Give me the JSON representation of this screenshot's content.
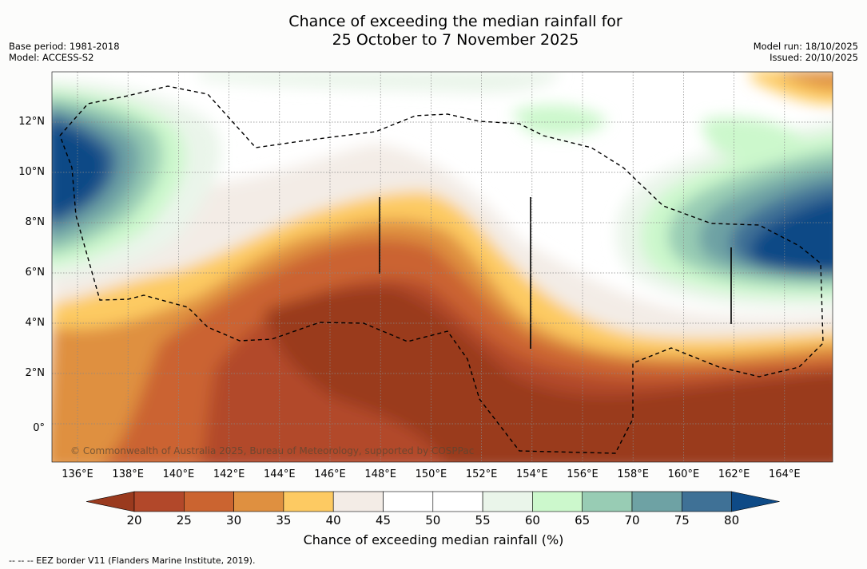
{
  "title": {
    "line1": "Chance of exceeding the median rainfall for",
    "line2": "25 October to 7 November 2025"
  },
  "meta_left": {
    "base_period": "Base period: 1981-2018",
    "model": "Model: ACCESS-S2"
  },
  "meta_right": {
    "model_run": "Model run: 18/10/2025",
    "issued": "Issued: 20/10/2025"
  },
  "map": {
    "x_ticks": [
      "136°E",
      "138°E",
      "140°E",
      "142°E",
      "144°E",
      "146°E",
      "148°E",
      "150°E",
      "152°E",
      "154°E",
      "156°E",
      "158°E",
      "160°E",
      "162°E",
      "164°E"
    ],
    "y_ticks": [
      "12°N",
      "10°N",
      "8°N",
      "6°N",
      "4°N",
      "2°N",
      "0°"
    ],
    "copyright": "© Commonwealth of Australia 2025, Bureau of Meteorology, supported by COSPPac"
  },
  "legend": {
    "colors": [
      "#9a3a1e",
      "#b2482a",
      "#cb6430",
      "#df9040",
      "#fdca62",
      "#f3ece6",
      "#ffffff",
      "#ffffff",
      "#eaf5ea",
      "#ccf8cc",
      "#98ccb4",
      "#6ea2a4",
      "#3f7196",
      "#0e4a86"
    ],
    "ticks": [
      "20",
      "25",
      "30",
      "35",
      "40",
      "45",
      "50",
      "55",
      "60",
      "65",
      "70",
      "75",
      "80"
    ],
    "title": "Chance of exceeding median rainfall (%)"
  },
  "footnote": "--  --  -- EEZ border V11 (Flanders Marine Institute, 2019)."
}
